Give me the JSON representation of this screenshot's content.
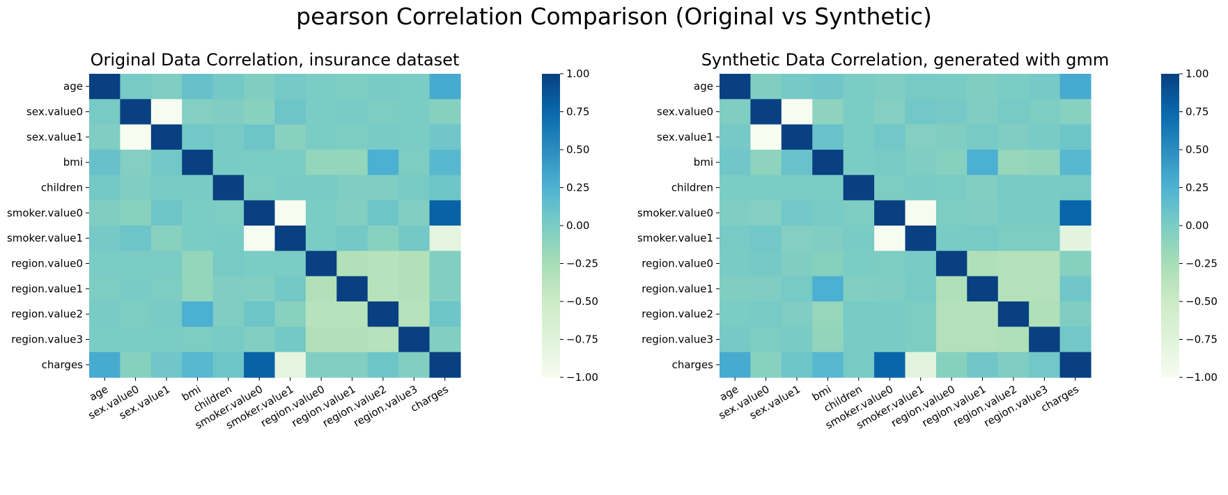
{
  "suptitle": "pearson Correlation Comparison (Original vs Synthetic)",
  "colormap": {
    "name": "YlGnBu",
    "stops": [
      [
        -1.0,
        "#f7fcf0"
      ],
      [
        -0.75,
        "#e0f3db"
      ],
      [
        -0.5,
        "#ccebc5"
      ],
      [
        -0.25,
        "#a8ddb5"
      ],
      [
        0.0,
        "#7bccc4"
      ],
      [
        0.25,
        "#4eb3d3"
      ],
      [
        0.5,
        "#2b8cbe"
      ],
      [
        0.75,
        "#0868ac"
      ],
      [
        1.0,
        "#084081"
      ]
    ]
  },
  "chart_data": [
    {
      "type": "heatmap",
      "title": "Original Data Correlation, insurance dataset",
      "labels": [
        "age",
        "sex.value0",
        "sex.value1",
        "bmi",
        "children",
        "smoker.value0",
        "smoker.value1",
        "region.value0",
        "region.value1",
        "region.value2",
        "region.value3",
        "charges"
      ],
      "vmin": -1.0,
      "vmax": 1.0,
      "colorbar_ticks": [
        "1.00",
        "0.75",
        "0.50",
        "0.25",
        "0.00",
        "−0.25",
        "−0.50",
        "−0.75",
        "−1.00"
      ],
      "values": [
        [
          1.0,
          0.02,
          -0.02,
          0.11,
          0.04,
          -0.03,
          0.03,
          0.0,
          -0.01,
          0.01,
          0.0,
          0.3
        ],
        [
          0.02,
          1.0,
          -1.0,
          -0.05,
          -0.02,
          -0.08,
          0.08,
          0.0,
          0.01,
          -0.01,
          0.0,
          -0.06
        ],
        [
          -0.02,
          -1.0,
          1.0,
          0.05,
          0.02,
          0.08,
          -0.08,
          0.0,
          -0.01,
          0.01,
          0.0,
          0.06
        ],
        [
          0.11,
          -0.05,
          0.05,
          1.0,
          0.01,
          0.0,
          0.0,
          -0.14,
          -0.14,
          0.27,
          -0.01,
          0.2
        ],
        [
          0.04,
          -0.02,
          0.02,
          0.01,
          1.0,
          -0.01,
          0.01,
          0.02,
          -0.02,
          -0.02,
          0.02,
          0.07
        ],
        [
          -0.03,
          -0.08,
          0.08,
          0.0,
          -0.01,
          1.0,
          -1.0,
          0.0,
          -0.04,
          0.07,
          -0.04,
          0.79
        ],
        [
          0.03,
          0.08,
          -0.08,
          0.0,
          0.01,
          -1.0,
          1.0,
          0.0,
          0.04,
          -0.07,
          0.04,
          -0.79
        ],
        [
          0.0,
          0.0,
          0.0,
          -0.14,
          0.02,
          0.0,
          0.0,
          1.0,
          -0.32,
          -0.35,
          -0.32,
          -0.04
        ],
        [
          -0.01,
          0.01,
          -0.01,
          -0.14,
          -0.02,
          -0.04,
          0.04,
          -0.32,
          1.0,
          -0.35,
          -0.32,
          -0.04
        ],
        [
          0.01,
          -0.01,
          0.01,
          0.27,
          -0.02,
          0.07,
          -0.07,
          -0.35,
          -0.35,
          1.0,
          -0.35,
          0.07
        ],
        [
          0.0,
          0.0,
          0.0,
          -0.01,
          0.02,
          -0.04,
          0.04,
          -0.32,
          -0.32,
          -0.35,
          1.0,
          -0.04
        ],
        [
          0.3,
          -0.06,
          0.06,
          0.2,
          0.07,
          0.79,
          -0.79,
          -0.04,
          -0.04,
          0.07,
          -0.04,
          1.0
        ]
      ]
    },
    {
      "type": "heatmap",
      "title": "Synthetic Data Correlation, generated with gmm",
      "labels": [
        "age",
        "sex.value0",
        "sex.value1",
        "bmi",
        "children",
        "smoker.value0",
        "smoker.value1",
        "region.value0",
        "region.value1",
        "region.value2",
        "region.value3",
        "charges"
      ],
      "vmin": -1.0,
      "vmax": 1.0,
      "colorbar_ticks": [
        "1.00",
        "0.75",
        "0.50",
        "0.25",
        "0.00",
        "−0.25",
        "−0.50",
        "−0.75",
        "−1.00"
      ],
      "values": [
        [
          1.0,
          -0.03,
          0.03,
          0.06,
          0.0,
          -0.02,
          0.02,
          0.01,
          -0.03,
          0.0,
          0.03,
          0.3
        ],
        [
          -0.03,
          1.0,
          -1.0,
          -0.1,
          0.0,
          -0.05,
          0.05,
          0.03,
          -0.02,
          0.02,
          -0.01,
          -0.07
        ],
        [
          0.03,
          -1.0,
          1.0,
          0.1,
          0.0,
          0.05,
          -0.05,
          -0.03,
          0.02,
          -0.02,
          0.01,
          0.07
        ],
        [
          0.06,
          -0.1,
          0.1,
          1.0,
          0.0,
          0.02,
          -0.02,
          -0.06,
          0.27,
          -0.15,
          -0.13,
          0.2
        ],
        [
          0.0,
          0.0,
          0.0,
          0.0,
          1.0,
          -0.01,
          0.01,
          0.0,
          -0.04,
          0.02,
          0.01,
          0.02
        ],
        [
          -0.02,
          -0.05,
          0.05,
          0.02,
          -0.01,
          1.0,
          -1.0,
          -0.01,
          -0.02,
          0.01,
          0.01,
          0.77
        ],
        [
          0.02,
          0.05,
          -0.05,
          -0.02,
          0.01,
          -1.0,
          1.0,
          0.01,
          0.02,
          -0.01,
          -0.01,
          -0.77
        ],
        [
          0.01,
          0.03,
          -0.03,
          -0.06,
          0.0,
          -0.01,
          0.01,
          1.0,
          -0.3,
          -0.33,
          -0.33,
          -0.06
        ],
        [
          -0.03,
          -0.02,
          0.02,
          0.27,
          -0.04,
          -0.02,
          0.02,
          -0.3,
          1.0,
          -0.33,
          -0.33,
          0.06
        ],
        [
          0.0,
          0.02,
          -0.02,
          -0.15,
          0.02,
          0.01,
          -0.01,
          -0.33,
          -0.33,
          1.0,
          -0.3,
          -0.02
        ],
        [
          0.03,
          -0.01,
          0.01,
          -0.13,
          0.01,
          0.01,
          -0.01,
          -0.33,
          -0.33,
          -0.3,
          1.0,
          0.05
        ],
        [
          0.3,
          -0.07,
          0.07,
          0.2,
          0.02,
          0.77,
          -0.77,
          -0.06,
          0.06,
          -0.02,
          0.05,
          1.0
        ]
      ]
    }
  ]
}
